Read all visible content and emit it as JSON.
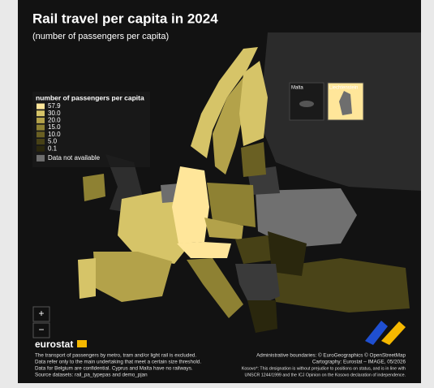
{
  "header": {
    "title": "Rail travel per capita in 2024",
    "subtitle": "(number of passengers per capita)"
  },
  "legend": {
    "title": "number of passengers per capita",
    "items": [
      {
        "label": "57.9",
        "color": "#ffe69a"
      },
      {
        "label": "30.0",
        "color": "#d6c468"
      },
      {
        "label": "20.0",
        "color": "#b3a24a"
      },
      {
        "label": "15.0",
        "color": "#8e8133"
      },
      {
        "label": "10.0",
        "color": "#6a6023"
      },
      {
        "label": "5.0",
        "color": "#474116"
      },
      {
        "label": "0.1",
        "color": "#2a270d"
      }
    ],
    "not_available": {
      "label": "Data not available",
      "color": "#6e6e6e"
    }
  },
  "insets": [
    "Malta",
    "Liechtenstein"
  ],
  "controls": [
    "+",
    "−"
  ],
  "logo": "eurostat",
  "notes": [
    "The transport of passengers by metro, tram and/or light rail is excluded.",
    "Data refer only to the main undertaking that meet a certain size threshold.",
    "Data for Belgium are confidential. Cyprus and Malta have no railways.",
    "Source datasets: rail_pa_typepas and demo_pjan"
  ],
  "attribution": [
    "Administrative boundaries: © EuroGeographics © OpenStreetMap",
    "Cartography: Eurostat – IMAGE, 05/2026",
    "Kosovo*: This designation is without prejudice to positions on status, and is in line with",
    "UNSCR 1244/1999 and the ICJ Opinion on the Kosovo declaration of independence."
  ]
}
